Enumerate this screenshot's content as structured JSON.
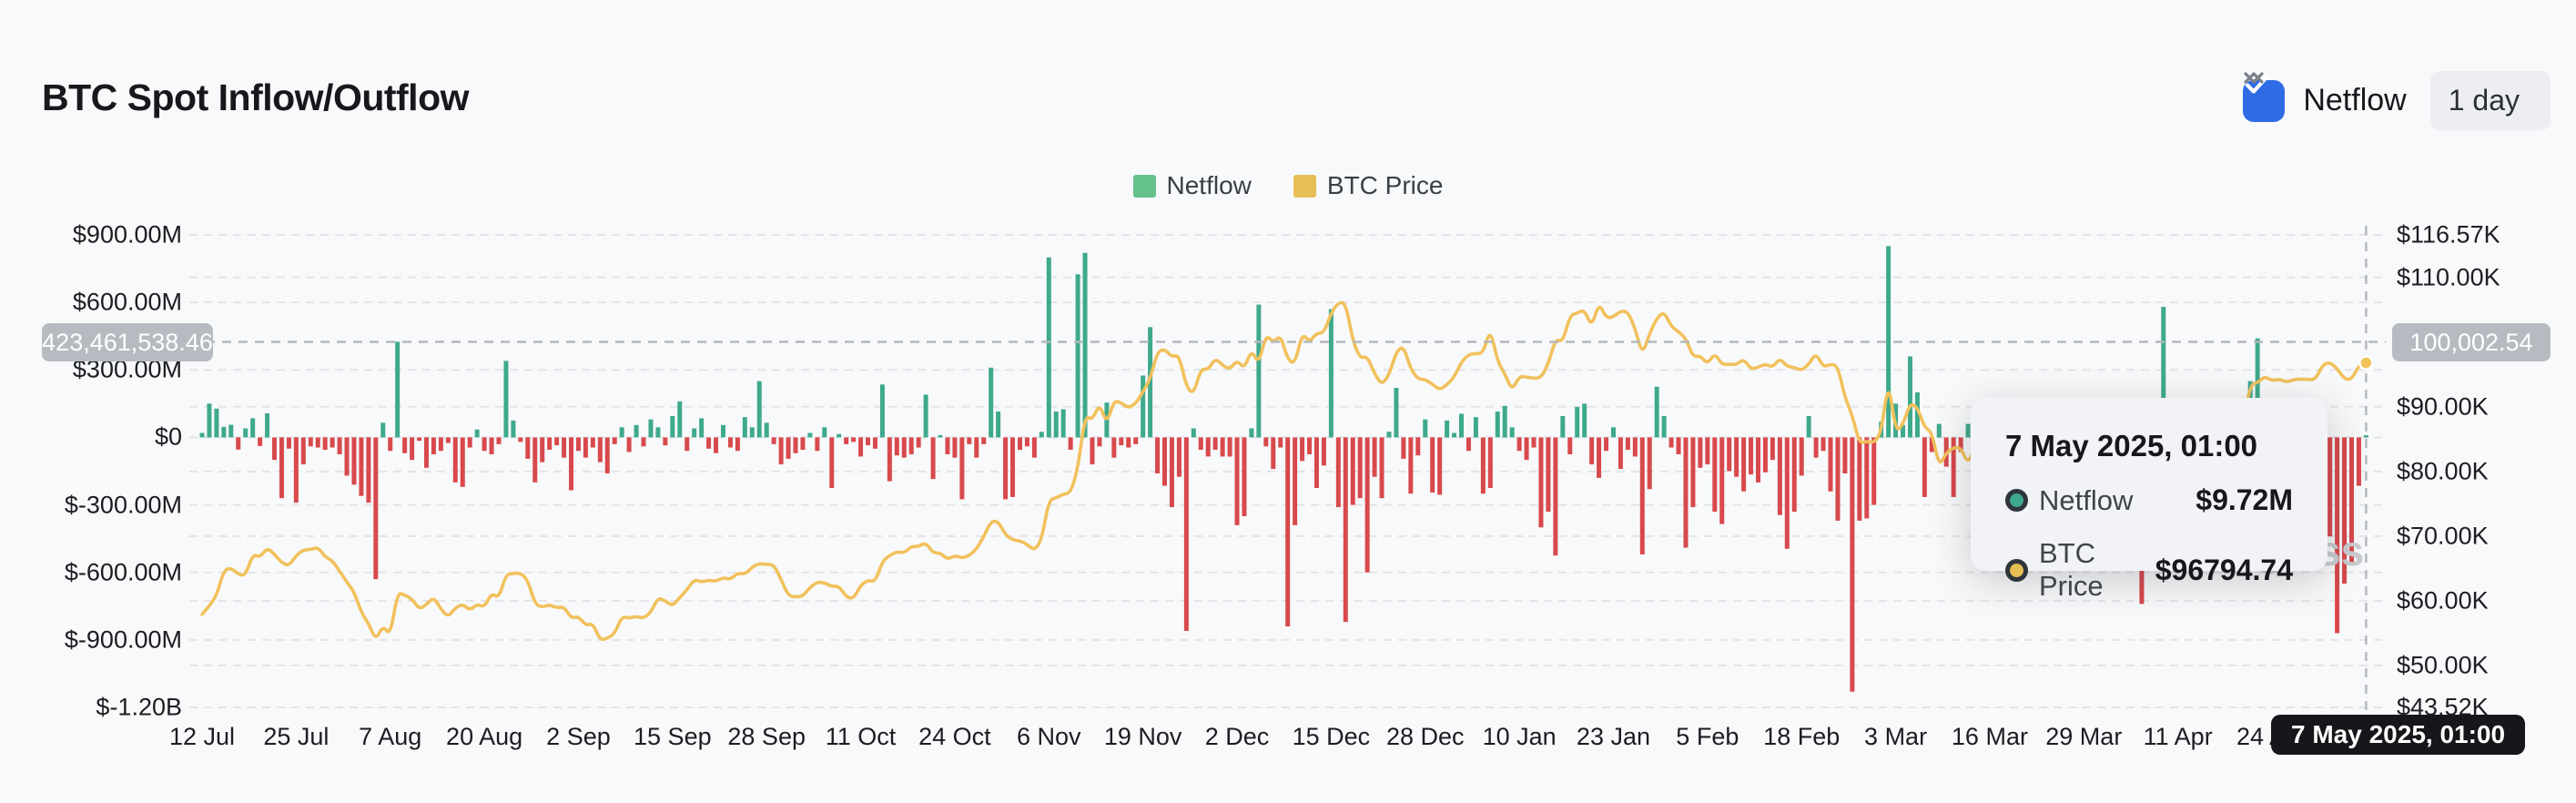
{
  "header": {
    "title": "BTC Spot Inflow/Outflow",
    "netflow_checkbox_label": "Netflow",
    "netflow_checkbox_checked": true,
    "interval_selector": "1 day"
  },
  "legend": [
    {
      "label": "Netflow",
      "color": "#66c28c"
    },
    {
      "label": "BTC Price",
      "color": "#e6be55"
    }
  ],
  "crosshair": {
    "left_badge": "423,461,538.46",
    "right_badge": "100,002.54",
    "date_badge": "7 May 2025, 01:00"
  },
  "tooltip": {
    "title": "7 May 2025, 01:00",
    "rows": [
      {
        "label": "Netflow",
        "value": "$9.72M",
        "color": "#3ea98c"
      },
      {
        "label": "BTC Price",
        "value": "$96794.74",
        "color": "#e6be55"
      }
    ]
  },
  "watermark": "coinglass",
  "colors": {
    "bar_positive": "#3ea98c",
    "bar_negative": "#d8494c",
    "price_line": "#f1c15c",
    "gridline": "#e3e4e7",
    "crosshair": "#b4b8be",
    "checkbox_blue": "#2f6be4",
    "badge_gray": "#b7bbc1",
    "background": "#f8f9fa"
  },
  "axes": {
    "left_ticks": [
      {
        "label": "$900.00M",
        "value": 900
      },
      {
        "label": "$600.00M",
        "value": 600
      },
      {
        "label": "$300.00M",
        "value": 300
      },
      {
        "label": "$0",
        "value": 0
      },
      {
        "label": "$-300.00M",
        "value": -300
      },
      {
        "label": "$-600.00M",
        "value": -600
      },
      {
        "label": "$-900.00M",
        "value": -900
      },
      {
        "label": "$-1.20B",
        "value": -1200
      }
    ],
    "right_ticks": [
      {
        "label": "$116.57K",
        "value": 116.57
      },
      {
        "label": "$110.00K",
        "value": 110
      },
      {
        "label": "$90.00K",
        "value": 90
      },
      {
        "label": "$80.00K",
        "value": 80
      },
      {
        "label": "$70.00K",
        "value": 70
      },
      {
        "label": "$60.00K",
        "value": 60
      },
      {
        "label": "$50.00K",
        "value": 50
      },
      {
        "label": "$43.52K",
        "value": 43.52
      }
    ],
    "x_ticks": [
      {
        "label": "12 Jul",
        "day": 0
      },
      {
        "label": "25 Jul",
        "day": 13
      },
      {
        "label": "7 Aug",
        "day": 26
      },
      {
        "label": "20 Aug",
        "day": 39
      },
      {
        "label": "2 Sep",
        "day": 52
      },
      {
        "label": "15 Sep",
        "day": 65
      },
      {
        "label": "28 Sep",
        "day": 78
      },
      {
        "label": "11 Oct",
        "day": 91
      },
      {
        "label": "24 Oct",
        "day": 104
      },
      {
        "label": "6 Nov",
        "day": 117
      },
      {
        "label": "19 Nov",
        "day": 130
      },
      {
        "label": "2 Dec",
        "day": 143
      },
      {
        "label": "15 Dec",
        "day": 156
      },
      {
        "label": "28 Dec",
        "day": 169
      },
      {
        "label": "10 Jan",
        "day": 182
      },
      {
        "label": "23 Jan",
        "day": 195
      },
      {
        "label": "5 Feb",
        "day": 208
      },
      {
        "label": "18 Feb",
        "day": 221
      },
      {
        "label": "3 Mar",
        "day": 234
      },
      {
        "label": "16 Mar",
        "day": 247
      },
      {
        "label": "29 Mar",
        "day": 260
      },
      {
        "label": "11 Apr",
        "day": 273
      },
      {
        "label": "24 Apr",
        "day": 286
      }
    ]
  },
  "chart_data": {
    "type": "combo",
    "title": "BTC Spot Inflow/Outflow",
    "interval": "1 day",
    "start_date": "2024-07-12",
    "end_date": "2025-05-07",
    "crosshair_day_index": 299,
    "left_axis": {
      "unit": "USD",
      "tick_values_musd": [
        900,
        600,
        300,
        0,
        -300,
        -600,
        -900,
        -1200
      ],
      "min_musd": -1300,
      "max_musd": 985
    },
    "right_axis": {
      "unit": "USD",
      "min_kusd": 43.52,
      "max_kusd": 116.57
    },
    "legend_position": "top-center",
    "grid": "horizontal-dashed",
    "series": [
      {
        "name": "Netflow",
        "type": "bar",
        "unit": "USD millions",
        "values": [
          20,
          150,
          128,
          47,
          56,
          -54,
          40,
          85,
          -38,
          107,
          -100,
          -270,
          -50,
          -290,
          -120,
          -40,
          -45,
          -55,
          -45,
          -75,
          -170,
          -210,
          -260,
          -290,
          -630,
          65,
          -60,
          425,
          -70,
          -100,
          -15,
          -135,
          -75,
          -60,
          -25,
          -200,
          -220,
          -45,
          35,
          -60,
          -75,
          -30,
          340,
          75,
          -20,
          -95,
          -200,
          -110,
          -55,
          -35,
          -90,
          -235,
          -60,
          -90,
          -45,
          -110,
          -160,
          -30,
          45,
          -65,
          55,
          -40,
          80,
          45,
          -35,
          95,
          160,
          -60,
          40,
          85,
          -50,
          -70,
          55,
          -45,
          -60,
          90,
          45,
          250,
          65,
          -30,
          -120,
          -95,
          -70,
          -55,
          20,
          -60,
          45,
          -225,
          15,
          -30,
          -20,
          -85,
          -35,
          -50,
          235,
          -195,
          -80,
          -90,
          -75,
          -45,
          190,
          -185,
          10,
          -75,
          -90,
          -275,
          -30,
          -90,
          -30,
          310,
          115,
          -275,
          -265,
          -55,
          -40,
          -90,
          25,
          800,
          115,
          125,
          -55,
          725,
          820,
          -120,
          -40,
          155,
          -90,
          -35,
          -45,
          -30,
          275,
          490,
          -160,
          -215,
          -310,
          -175,
          -860,
          40,
          -55,
          -85,
          -55,
          -85,
          -85,
          -390,
          -350,
          40,
          590,
          -40,
          -140,
          -45,
          -840,
          -390,
          -105,
          -75,
          -225,
          -125,
          570,
          -310,
          -820,
          -300,
          -270,
          -600,
          -175,
          -270,
          25,
          220,
          -95,
          -250,
          -80,
          80,
          -245,
          -255,
          75,
          20,
          105,
          -60,
          90,
          -250,
          -225,
          115,
          140,
          45,
          -60,
          -100,
          -45,
          -400,
          -330,
          -525,
          95,
          -75,
          135,
          150,
          -120,
          -180,
          -60,
          45,
          -140,
          -55,
          -85,
          -520,
          -230,
          225,
          95,
          -45,
          -75,
          -490,
          -310,
          -135,
          -120,
          -330,
          -385,
          -150,
          -175,
          -240,
          -165,
          -200,
          -155,
          -100,
          -345,
          -495,
          -330,
          -170,
          95,
          -90,
          -60,
          -240,
          -370,
          -160,
          -1130,
          -370,
          -360,
          -300,
          70,
          850,
          150,
          55,
          360,
          200,
          -265,
          -65,
          60,
          -130,
          -265,
          -65,
          60,
          130,
          -90,
          -60,
          90,
          -180,
          120,
          -55,
          -90,
          -35,
          -70,
          170,
          -60,
          -130,
          -45,
          -345,
          -110,
          -65,
          -80,
          80,
          -160,
          -240,
          -90,
          -60,
          -740,
          -180,
          -320,
          580,
          -130,
          -85,
          60,
          -60,
          45,
          -90,
          100,
          -75,
          35,
          -55,
          65,
          250,
          440,
          -65,
          85,
          -45,
          60,
          -35,
          -60,
          40,
          -70,
          -65,
          -440,
          -870,
          -650,
          -555,
          -215,
          9.72
        ]
      },
      {
        "name": "BTC Price",
        "type": "line",
        "unit": "USD thousands",
        "values": [
          57.9,
          59.2,
          60.8,
          64.7,
          65.1,
          64.1,
          63.9,
          67.2,
          66.7,
          68.2,
          67.2,
          65.9,
          65.4,
          67.0,
          67.9,
          67.9,
          68.3,
          66.8,
          66.2,
          64.6,
          62.9,
          61.4,
          58.2,
          56.5,
          53.9,
          56.2,
          54.6,
          61.3,
          60.9,
          60.3,
          58.7,
          59.4,
          60.6,
          58.7,
          57.5,
          58.9,
          59.5,
          58.5,
          59.5,
          59.0,
          61.2,
          60.4,
          64.1,
          64.2,
          64.3,
          63.2,
          59.5,
          59.0,
          59.4,
          58.9,
          59.1,
          57.3,
          57.6,
          56.2,
          56.5,
          53.9,
          54.2,
          54.9,
          57.6,
          57.3,
          57.6,
          57.3,
          58.2,
          60.5,
          60.0,
          59.2,
          60.5,
          61.7,
          63.3,
          62.9,
          63.2,
          63.0,
          63.6,
          63.3,
          64.3,
          64.1,
          65.2,
          65.8,
          65.6,
          65.6,
          63.3,
          60.8,
          60.6,
          60.7,
          62.1,
          62.9,
          62.8,
          62.2,
          62.3,
          60.6,
          60.3,
          62.4,
          63.2,
          62.9,
          66.1,
          67.0,
          67.6,
          67.4,
          68.4,
          68.4,
          69.0,
          67.4,
          67.4,
          66.4,
          67.0,
          66.6,
          67.0,
          68.0,
          69.9,
          72.3,
          72.3,
          70.2,
          69.4,
          69.3,
          68.7,
          67.8,
          69.4,
          75.6,
          75.9,
          76.5,
          76.7,
          80.4,
          88.7,
          87.9,
          90.5,
          87.3,
          91.0,
          90.6,
          89.8,
          90.5,
          92.3,
          94.3,
          98.5,
          98.9,
          97.7,
          98.0,
          93.1,
          91.9,
          95.9,
          95.7,
          97.5,
          96.4,
          95.8,
          97.2,
          95.9,
          98.8,
          96.6,
          101.2,
          99.9,
          101.1,
          97.3,
          96.6,
          101.4,
          100.0,
          101.4,
          101.4,
          104.5,
          106.1,
          106.1,
          100.2,
          97.5,
          97.8,
          95.1,
          93.4,
          94.9,
          98.5,
          99.4,
          95.8,
          94.3,
          94.2,
          93.5,
          92.6,
          93.4,
          94.6,
          96.9,
          98.1,
          98.2,
          98.3,
          102.1,
          97.0,
          95.1,
          92.5,
          94.7,
          94.6,
          94.4,
          94.5,
          96.6,
          100.5,
          100.0,
          104.1,
          104.5,
          105.0,
          102.3,
          106.1,
          103.7,
          103.9,
          104.8,
          104.7,
          102.1,
          98.0,
          101.3,
          103.7,
          104.7,
          102.4,
          101.6,
          100.6,
          97.7,
          97.9,
          96.6,
          98.3,
          96.5,
          96.6,
          96.5,
          97.4,
          95.8,
          96.1,
          96.6,
          96.1,
          97.5,
          96.2,
          96.1,
          95.6,
          96.6,
          98.3,
          96.1,
          96.6,
          96.3,
          91.4,
          88.7,
          84.3,
          84.7,
          84.4,
          86.0,
          94.2,
          86.1,
          87.2,
          90.6,
          89.9,
          86.8,
          86.1,
          80.7,
          82.9,
          83.7,
          83.7,
          81.1,
          83.9,
          84.3,
          82.6,
          84.0,
          82.5,
          86.9,
          84.2,
          84.0,
          83.8,
          85.8,
          87.5,
          87.5,
          86.9,
          87.2,
          84.4,
          82.6,
          82.4,
          82.5,
          85.2,
          82.5,
          83.2,
          83.8,
          83.5,
          78.4,
          76.3,
          82.6,
          79.6,
          83.7,
          84.5,
          85.2,
          84.0,
          85.2,
          84.0,
          84.9,
          84.5,
          85.1,
          87.5,
          87.3,
          93.4,
          93.7,
          94.7,
          94.0,
          94.3,
          93.8,
          94.2,
          94.3,
          94.2,
          94.2,
          96.5,
          96.9,
          95.9,
          94.3,
          94.2,
          96.4,
          96.79
        ]
      }
    ]
  }
}
